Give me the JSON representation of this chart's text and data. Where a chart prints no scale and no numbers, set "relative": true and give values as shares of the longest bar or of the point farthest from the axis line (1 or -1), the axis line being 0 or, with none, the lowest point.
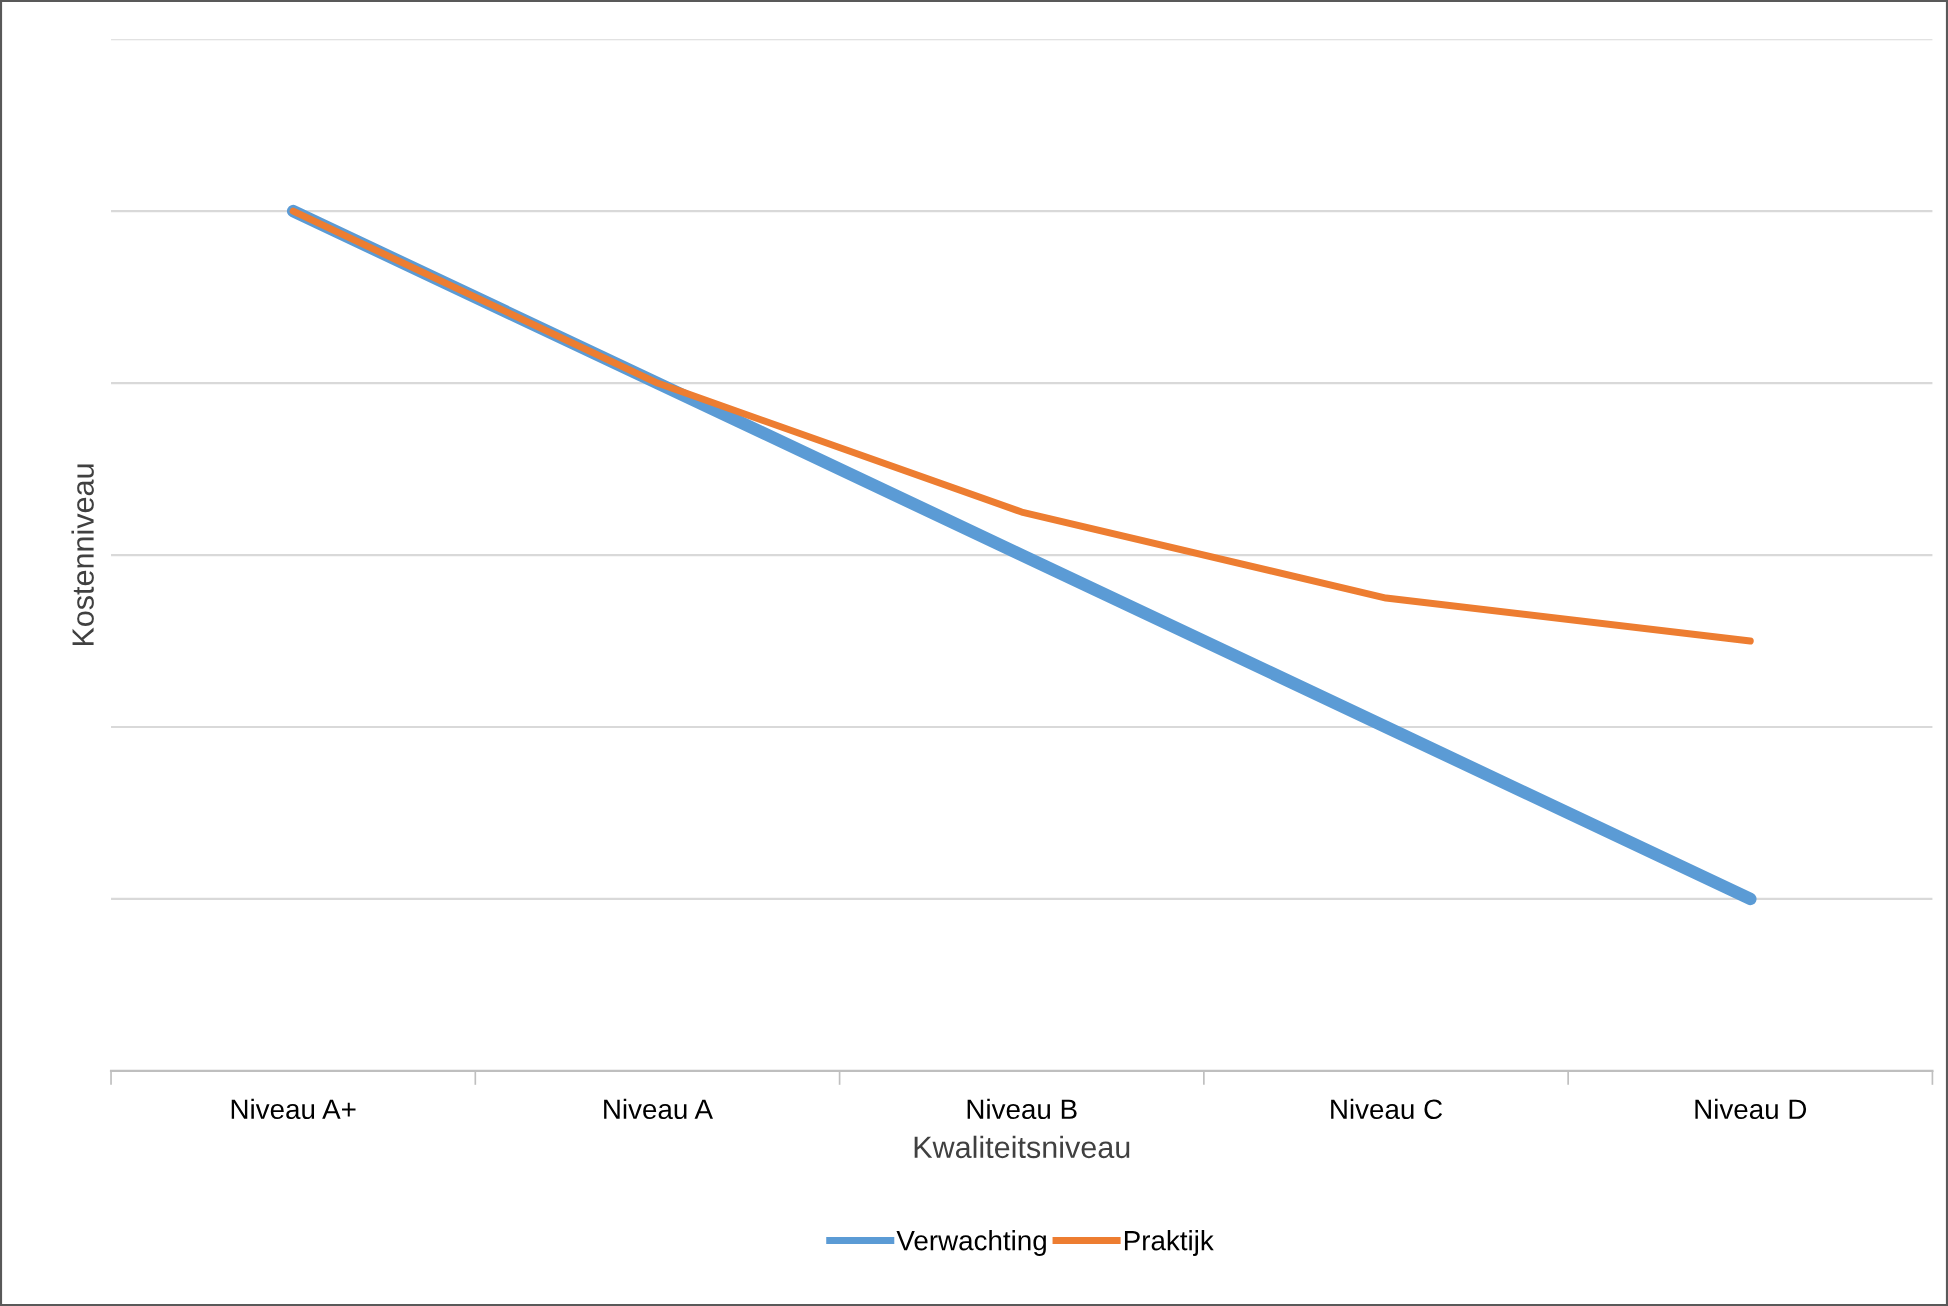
{
  "chart_data": {
    "type": "line",
    "xlabel": "Kwaliteitsniveau",
    "ylabel": "Kostenniveau",
    "relative": true,
    "grid": "y",
    "legend": "bottom",
    "marker": "none",
    "line_style": "solid",
    "categories": [
      "Niveau A+",
      "Niveau A",
      "Niveau B",
      "Niveau C",
      "Niveau D"
    ],
    "series": [
      {
        "name": "Verwachting",
        "color": "#5b9bd5",
        "values": [
          1,
          0.8,
          0.6,
          0.4,
          0.2
        ]
      },
      {
        "name": "Praktijk",
        "color": "#ed7d31",
        "values": [
          1,
          0.8,
          0.65,
          0.55,
          0.5
        ]
      }
    ]
  }
}
